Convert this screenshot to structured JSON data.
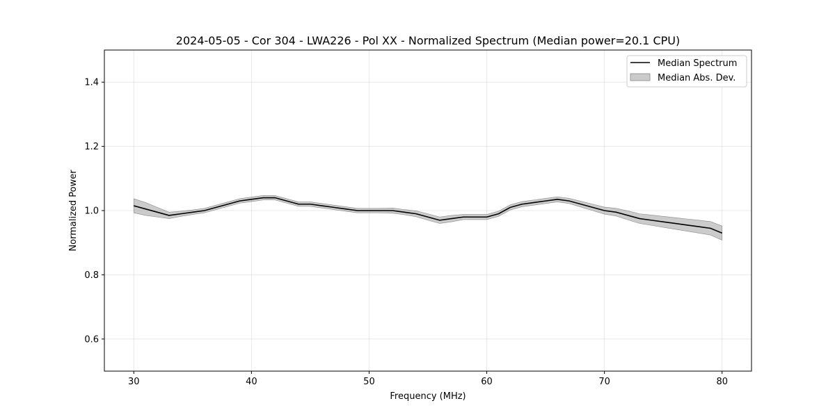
{
  "chart_data": {
    "type": "line",
    "title": "2024-05-05 - Cor 304 - LWA226 - Pol XX - Normalized Spectrum (Median power=20.1 CPU)",
    "xlabel": "Frequency (MHz)",
    "ylabel": "Normalized Power",
    "xlim": [
      27.5,
      82.5
    ],
    "ylim": [
      0.5,
      1.5
    ],
    "grid": true,
    "x_ticks": [
      30,
      40,
      50,
      60,
      70,
      80
    ],
    "y_ticks": [
      0.6,
      0.8,
      1.0,
      1.2,
      1.4
    ],
    "x_tick_labels": [
      "30",
      "40",
      "50",
      "60",
      "70",
      "80"
    ],
    "y_tick_labels": [
      "0.6",
      "0.8",
      "1.0",
      "1.2",
      "1.4"
    ],
    "legend_position": "top-right",
    "colors": {
      "line": "#000000",
      "band": "#a0a0a0"
    },
    "series": [
      {
        "name": "Median Spectrum",
        "kind": "line",
        "x": [
          30,
          31,
          32,
          33,
          34,
          35,
          36,
          37,
          38,
          39,
          40,
          41,
          42,
          43,
          44,
          45,
          46,
          47,
          48,
          49,
          50,
          51,
          52,
          53,
          54,
          55,
          56,
          57,
          58,
          59,
          60,
          61,
          62,
          63,
          64,
          65,
          66,
          67,
          68,
          69,
          70,
          71,
          72,
          73,
          74,
          75,
          76,
          77,
          78,
          79,
          80
        ],
        "values": [
          1.015,
          1.005,
          0.995,
          0.985,
          0.99,
          0.995,
          1.0,
          1.01,
          1.02,
          1.03,
          1.035,
          1.04,
          1.04,
          1.03,
          1.02,
          1.02,
          1.015,
          1.01,
          1.005,
          1.0,
          1.0,
          1.0,
          1.0,
          0.995,
          0.99,
          0.98,
          0.97,
          0.975,
          0.98,
          0.98,
          0.98,
          0.99,
          1.01,
          1.02,
          1.025,
          1.03,
          1.035,
          1.03,
          1.02,
          1.01,
          1.0,
          0.995,
          0.985,
          0.975,
          0.97,
          0.965,
          0.96,
          0.955,
          0.95,
          0.945,
          0.93
        ]
      },
      {
        "name": "Median Abs. Dev.",
        "kind": "band",
        "x": [
          30,
          31,
          32,
          33,
          34,
          35,
          36,
          37,
          38,
          39,
          40,
          41,
          42,
          43,
          44,
          45,
          46,
          47,
          48,
          49,
          50,
          51,
          52,
          53,
          54,
          55,
          56,
          57,
          58,
          59,
          60,
          61,
          62,
          63,
          64,
          65,
          66,
          67,
          68,
          69,
          70,
          71,
          72,
          73,
          74,
          75,
          76,
          77,
          78,
          79,
          80
        ],
        "half_width": [
          0.022,
          0.02,
          0.015,
          0.01,
          0.008,
          0.007,
          0.007,
          0.007,
          0.007,
          0.007,
          0.007,
          0.007,
          0.007,
          0.007,
          0.007,
          0.007,
          0.007,
          0.007,
          0.007,
          0.007,
          0.007,
          0.007,
          0.008,
          0.008,
          0.009,
          0.01,
          0.01,
          0.01,
          0.008,
          0.008,
          0.008,
          0.008,
          0.008,
          0.008,
          0.008,
          0.008,
          0.008,
          0.008,
          0.009,
          0.01,
          0.011,
          0.012,
          0.014,
          0.015,
          0.016,
          0.017,
          0.018,
          0.019,
          0.02,
          0.021,
          0.022
        ]
      }
    ]
  }
}
